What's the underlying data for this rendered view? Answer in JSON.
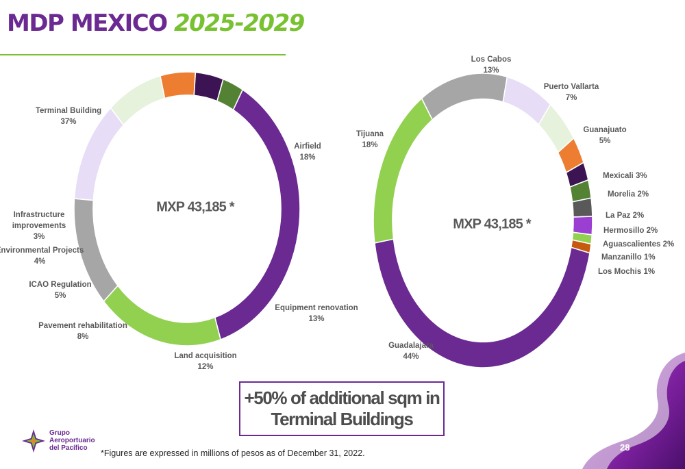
{
  "header": {
    "title_main": "MDP MEXICO",
    "title_years": "2025-2029"
  },
  "chart_data": [
    {
      "type": "pie",
      "variant": "donut",
      "center_label": "MXP 43,185 *",
      "slices": [
        {
          "label": "Terminal Building",
          "value": 37,
          "value_label": "37%",
          "color": "#6a2a91"
        },
        {
          "label": "Airfield",
          "value": 18,
          "value_label": "18%",
          "color": "#92d050"
        },
        {
          "label": "Equipment renovation",
          "value": 13,
          "value_label": "13%",
          "color": "#a6a6a6"
        },
        {
          "label": "Land acquisition",
          "value": 12,
          "value_label": "12%",
          "color": "#e8ddf6"
        },
        {
          "label": "Pavement rehabilitation",
          "value": 8,
          "value_label": "8%",
          "color": "#e6f2dc"
        },
        {
          "label": "ICAO Regulation",
          "value": 5,
          "value_label": "5%",
          "color": "#ed7d31"
        },
        {
          "label": "Environmental Projects",
          "value": 4,
          "value_label": "4%",
          "color": "#3d1453"
        },
        {
          "label": "Infrastructure improvements",
          "value": 3,
          "value_label": "3%",
          "color": "#548235"
        }
      ]
    },
    {
      "type": "pie",
      "variant": "donut",
      "center_label": "MXP 43,185 *",
      "slices": [
        {
          "label": "Los Cabos",
          "value": 13,
          "value_label": "13%",
          "color": "#a6a6a6"
        },
        {
          "label": "Puerto Vallarta",
          "value": 7,
          "value_label": "7%",
          "color": "#e8ddf6"
        },
        {
          "label": "Guanajuato",
          "value": 5,
          "value_label": "5%",
          "color": "#e6f2dc"
        },
        {
          "label": "Mexicali",
          "value": 3,
          "value_label": "3%",
          "color": "#ed7d31"
        },
        {
          "label": "Morelia",
          "value": 2,
          "value_label": "2%",
          "color": "#3d1453"
        },
        {
          "label": "La Paz",
          "value": 2,
          "value_label": "2%",
          "color": "#548235"
        },
        {
          "label": "Hermosillo",
          "value": 2,
          "value_label": "2%",
          "color": "#595959"
        },
        {
          "label": "Aguascalientes",
          "value": 2,
          "value_label": "2%",
          "color": "#9b3fd3"
        },
        {
          "label": "Manzanillo",
          "value": 1,
          "value_label": "1%",
          "color": "#92d050"
        },
        {
          "label": "Los Mochis",
          "value": 1,
          "value_label": "1%",
          "color": "#c55a11"
        },
        {
          "label": "Guadalajara",
          "value": 44,
          "value_label": "44%",
          "color": "#6a2a91"
        },
        {
          "label": "Tijuana",
          "value": 18,
          "value_label": "18%",
          "color": "#92d050"
        }
      ]
    }
  ],
  "callout": {
    "line1": "+50%  of additional sqm in",
    "line2": "Terminal Buildings"
  },
  "logo": {
    "line1": "Grupo",
    "line2": "Aeroportuario",
    "line3": "del Pacífico"
  },
  "footnote": "*Figures are expressed in millions of pesos as of December 31, 2022.",
  "page_number": "28",
  "colors": {
    "brand_purple": "#6a2a91",
    "brand_green": "#78c130"
  }
}
